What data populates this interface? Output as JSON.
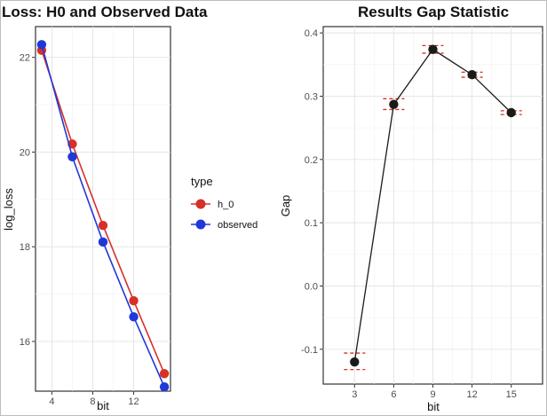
{
  "chart_data": [
    {
      "type": "line",
      "title": "Loss: H0 and Observed Data",
      "xlabel": "bit",
      "ylabel": "log_loss",
      "xlim": [
        2.4,
        15.6
      ],
      "ylim": [
        14.95,
        22.65
      ],
      "x_ticks": [
        4,
        8,
        12
      ],
      "y_ticks": [
        16,
        18,
        20,
        22
      ],
      "grid": true,
      "legend": {
        "title": "type",
        "placement": "right",
        "entries": [
          "h_0",
          "observed"
        ]
      },
      "x": [
        3,
        6,
        9,
        12,
        15
      ],
      "series": [
        {
          "name": "h_0",
          "color": "#d73027",
          "values": [
            22.15,
            20.17,
            18.45,
            16.86,
            15.32
          ]
        },
        {
          "name": "observed",
          "color": "#2138d8",
          "values": [
            22.27,
            19.9,
            18.1,
            16.52,
            15.04
          ]
        }
      ]
    },
    {
      "type": "line",
      "title": "Results Gap Statistic",
      "xlabel": "bit",
      "ylabel": "Gap",
      "xlim": [
        0.6,
        17.4
      ],
      "ylim": [
        -0.155,
        0.41
      ],
      "x_ticks": [
        3,
        6,
        9,
        12,
        15
      ],
      "y_ticks": [
        -0.1,
        0.0,
        0.1,
        0.2,
        0.3,
        0.4
      ],
      "y_tick_labels": [
        "-0.1",
        "0.0",
        "0.1",
        "0.2",
        "0.3",
        "0.4"
      ],
      "grid": true,
      "x": [
        3,
        6,
        9,
        12,
        15
      ],
      "series": [
        {
          "color": "#1a1a1a",
          "values": [
            -0.12,
            0.287,
            0.374,
            0.334,
            0.274
          ],
          "error_low": [
            -0.132,
            0.279,
            0.368,
            0.33,
            0.271
          ],
          "error_high": [
            -0.106,
            0.296,
            0.38,
            0.338,
            0.277
          ],
          "error_color": "#d73027"
        }
      ]
    }
  ]
}
